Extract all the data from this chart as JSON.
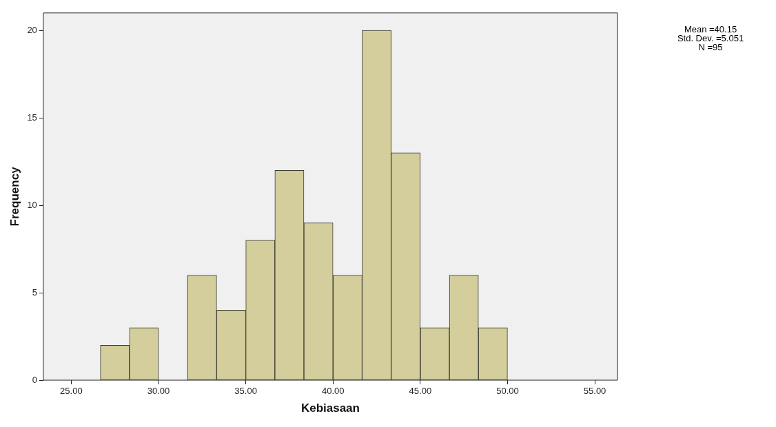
{
  "chart_data": {
    "type": "histogram",
    "xlabel": "Kebiasaan",
    "ylabel": "Frequency",
    "bins": [
      26.67,
      28.33,
      30,
      31.67,
      33.33,
      35,
      36.67,
      38.33,
      40,
      41.67,
      43.33,
      45,
      46.67,
      48.33,
      50
    ],
    "values": [
      2,
      3,
      0,
      6,
      4,
      8,
      12,
      9,
      6,
      20,
      13,
      3,
      6,
      3
    ],
    "color": "#d3ce9b",
    "xlim": [
      23.4,
      56.3
    ],
    "xticks": [
      {
        "value": 25,
        "label": "25.00"
      },
      {
        "value": 30,
        "label": "30.00"
      },
      {
        "value": 35,
        "label": "35.00"
      },
      {
        "value": 40,
        "label": "40.00"
      },
      {
        "value": 45,
        "label": "45.00"
      },
      {
        "value": 50,
        "label": "50.00"
      },
      {
        "value": 55,
        "label": "55.00"
      }
    ],
    "ylim": [
      0,
      21
    ],
    "yticks": [
      0,
      5,
      10,
      15,
      20
    ],
    "grid": false,
    "legend": false,
    "annotations": [
      "Mean =40.15",
      "Std. Dev. =5.051",
      "N =95"
    ]
  }
}
